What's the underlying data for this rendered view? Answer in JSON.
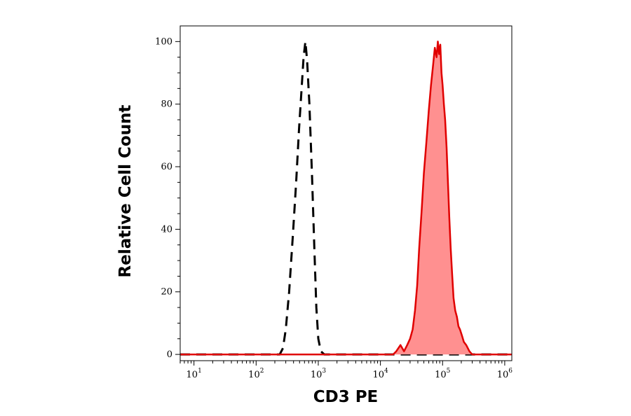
{
  "chart_data": {
    "type": "area",
    "title": "",
    "xlabel": "CD3 PE",
    "ylabel": "Relative Cell Count",
    "x_scale": "log",
    "xlim": [
      6,
      1300000
    ],
    "ylim": [
      -2,
      105
    ],
    "grid": false,
    "x_ticks": [
      {
        "base": "10",
        "exp": "1",
        "value": 10
      },
      {
        "base": "10",
        "exp": "2",
        "value": 100
      },
      {
        "base": "10",
        "exp": "3",
        "value": 1000
      },
      {
        "base": "10",
        "exp": "4",
        "value": 10000
      },
      {
        "base": "10",
        "exp": "5",
        "value": 100000
      },
      {
        "base": "10",
        "exp": "6",
        "value": 1000000
      }
    ],
    "y_ticks": [
      {
        "label": "0",
        "value": 0
      },
      {
        "label": "20",
        "value": 20
      },
      {
        "label": "40",
        "value": 40
      },
      {
        "label": "60",
        "value": 60
      },
      {
        "label": "80",
        "value": 80
      },
      {
        "label": "100",
        "value": 100
      }
    ],
    "series": [
      {
        "style": "dashed",
        "color": "#000000",
        "filled": false,
        "points": [
          [
            6,
            0
          ],
          [
            240,
            0
          ],
          [
            270,
            2
          ],
          [
            300,
            8
          ],
          [
            340,
            20
          ],
          [
            390,
            38
          ],
          [
            440,
            55
          ],
          [
            490,
            72
          ],
          [
            540,
            85
          ],
          [
            580,
            95
          ],
          [
            620,
            100
          ],
          [
            660,
            94
          ],
          [
            720,
            80
          ],
          [
            790,
            58
          ],
          [
            860,
            35
          ],
          [
            930,
            15
          ],
          [
            1000,
            5
          ],
          [
            1100,
            1
          ],
          [
            1250,
            0
          ],
          [
            1300000,
            0
          ]
        ]
      },
      {
        "style": "solid",
        "color": "#e00000",
        "fill": "#ff9090",
        "filled": true,
        "points": [
          [
            6,
            0
          ],
          [
            16000,
            0
          ],
          [
            18000,
            1
          ],
          [
            21000,
            3
          ],
          [
            24000,
            1
          ],
          [
            27000,
            3
          ],
          [
            30000,
            5
          ],
          [
            33000,
            8
          ],
          [
            36000,
            14
          ],
          [
            39000,
            22
          ],
          [
            42000,
            34
          ],
          [
            46000,
            46
          ],
          [
            50000,
            58
          ],
          [
            55000,
            68
          ],
          [
            60000,
            78
          ],
          [
            65000,
            86
          ],
          [
            70000,
            92
          ],
          [
            75000,
            98
          ],
          [
            80000,
            95
          ],
          [
            84000,
            100
          ],
          [
            88000,
            96
          ],
          [
            92000,
            99
          ],
          [
            96000,
            90
          ],
          [
            100000,
            86
          ],
          [
            105000,
            80
          ],
          [
            110000,
            75
          ],
          [
            116000,
            66
          ],
          [
            122000,
            55
          ],
          [
            128000,
            44
          ],
          [
            135000,
            34
          ],
          [
            142000,
            26
          ],
          [
            150000,
            18
          ],
          [
            160000,
            14
          ],
          [
            170000,
            12
          ],
          [
            180000,
            9
          ],
          [
            190000,
            8
          ],
          [
            205000,
            6
          ],
          [
            220000,
            4
          ],
          [
            240000,
            3
          ],
          [
            270000,
            1
          ],
          [
            300000,
            0
          ],
          [
            1300000,
            0
          ]
        ]
      }
    ]
  }
}
